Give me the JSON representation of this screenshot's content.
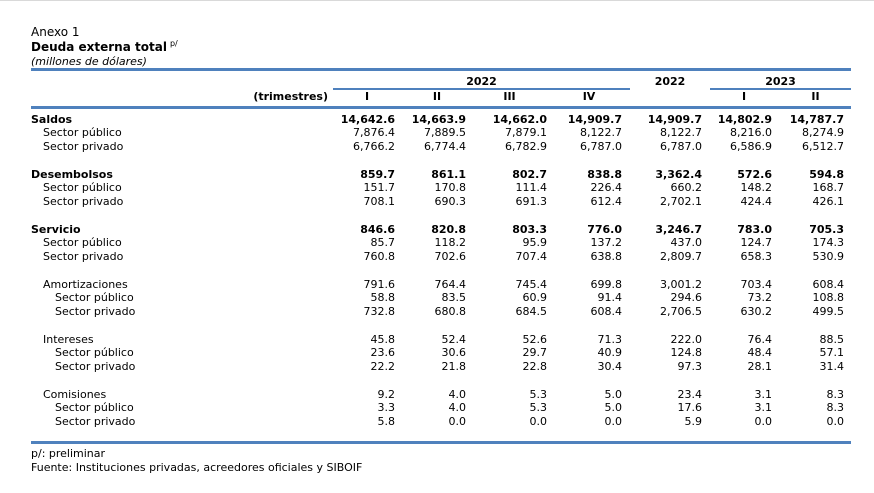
{
  "heading": {
    "annex": "Anexo 1",
    "title": "Deuda externa total",
    "title_note": "p/",
    "units": "(millones de dólares)"
  },
  "columns": {
    "year_2022_quarters": "2022",
    "year_2022_annual": "2022",
    "year_2023_quarters": "2023",
    "period_label": "(trimestres)",
    "quarters": [
      "I",
      "II",
      "III",
      "IV",
      "I",
      "II"
    ]
  },
  "rows": [
    {
      "label": "Saldos",
      "level": 0,
      "bold": true,
      "values": [
        "14,642.6",
        "14,663.9",
        "14,662.0",
        "14,909.7",
        "14,909.7",
        "14,802.9",
        "14,787.7"
      ]
    },
    {
      "label": "Sector público",
      "level": 1,
      "bold": false,
      "values": [
        "7,876.4",
        "7,889.5",
        "7,879.1",
        "8,122.7",
        "8,122.7",
        "8,216.0",
        "8,274.9"
      ]
    },
    {
      "label": "Sector privado",
      "level": 1,
      "bold": false,
      "values": [
        "6,766.2",
        "6,774.4",
        "6,782.9",
        "6,787.0",
        "6,787.0",
        "6,586.9",
        "6,512.7"
      ]
    },
    {
      "label": "Desembolsos",
      "level": 0,
      "bold": true,
      "values": [
        "859.7",
        "861.1",
        "802.7",
        "838.8",
        "3,362.4",
        "572.6",
        "594.8"
      ]
    },
    {
      "label": "Sector público",
      "level": 1,
      "bold": false,
      "values": [
        "151.7",
        "170.8",
        "111.4",
        "226.4",
        "660.2",
        "148.2",
        "168.7"
      ]
    },
    {
      "label": "Sector privado",
      "level": 1,
      "bold": false,
      "values": [
        "708.1",
        "690.3",
        "691.3",
        "612.4",
        "2,702.1",
        "424.4",
        "426.1"
      ]
    },
    {
      "label": "Servicio",
      "level": 0,
      "bold": true,
      "values": [
        "846.6",
        "820.8",
        "803.3",
        "776.0",
        "3,246.7",
        "783.0",
        "705.3"
      ]
    },
    {
      "label": "Sector público",
      "level": 1,
      "bold": false,
      "values": [
        "85.7",
        "118.2",
        "95.9",
        "137.2",
        "437.0",
        "124.7",
        "174.3"
      ]
    },
    {
      "label": "Sector privado",
      "level": 1,
      "bold": false,
      "values": [
        "760.8",
        "702.6",
        "707.4",
        "638.8",
        "2,809.7",
        "658.3",
        "530.9"
      ]
    },
    {
      "label": "Amortizaciones",
      "level": 1,
      "bold": false,
      "values": [
        "791.6",
        "764.4",
        "745.4",
        "699.8",
        "3,001.2",
        "703.4",
        "608.4"
      ]
    },
    {
      "label": "Sector público",
      "level": 2,
      "bold": false,
      "values": [
        "58.8",
        "83.5",
        "60.9",
        "91.4",
        "294.6",
        "73.2",
        "108.8"
      ]
    },
    {
      "label": "Sector privado",
      "level": 2,
      "bold": false,
      "values": [
        "732.8",
        "680.8",
        "684.5",
        "608.4",
        "2,706.5",
        "630.2",
        "499.5"
      ]
    },
    {
      "label": "Intereses",
      "level": 1,
      "bold": false,
      "values": [
        "45.8",
        "52.4",
        "52.6",
        "71.3",
        "222.0",
        "76.4",
        "88.5"
      ]
    },
    {
      "label": "Sector público",
      "level": 2,
      "bold": false,
      "values": [
        "23.6",
        "30.6",
        "29.7",
        "40.9",
        "124.8",
        "48.4",
        "57.1"
      ]
    },
    {
      "label": "Sector privado",
      "level": 2,
      "bold": false,
      "values": [
        "22.2",
        "21.8",
        "22.8",
        "30.4",
        "97.3",
        "28.1",
        "31.4"
      ]
    },
    {
      "label": "Comisiones",
      "level": 1,
      "bold": false,
      "values": [
        "9.2",
        "4.0",
        "5.3",
        "5.0",
        "23.4",
        "3.1",
        "8.3"
      ]
    },
    {
      "label": "Sector público",
      "level": 2,
      "bold": false,
      "values": [
        "3.3",
        "4.0",
        "5.3",
        "5.0",
        "17.6",
        "3.1",
        "8.3"
      ]
    },
    {
      "label": "Sector privado",
      "level": 2,
      "bold": false,
      "values": [
        "5.8",
        "0.0",
        "0.0",
        "0.0",
        "5.9",
        "0.0",
        "0.0"
      ]
    }
  ],
  "footnotes": {
    "preliminary": "p/: preliminar",
    "source": "Fuente: Instituciones privadas, acreedores oficiales y SIBOIF"
  },
  "colors": {
    "rule": "#4f81bd"
  }
}
